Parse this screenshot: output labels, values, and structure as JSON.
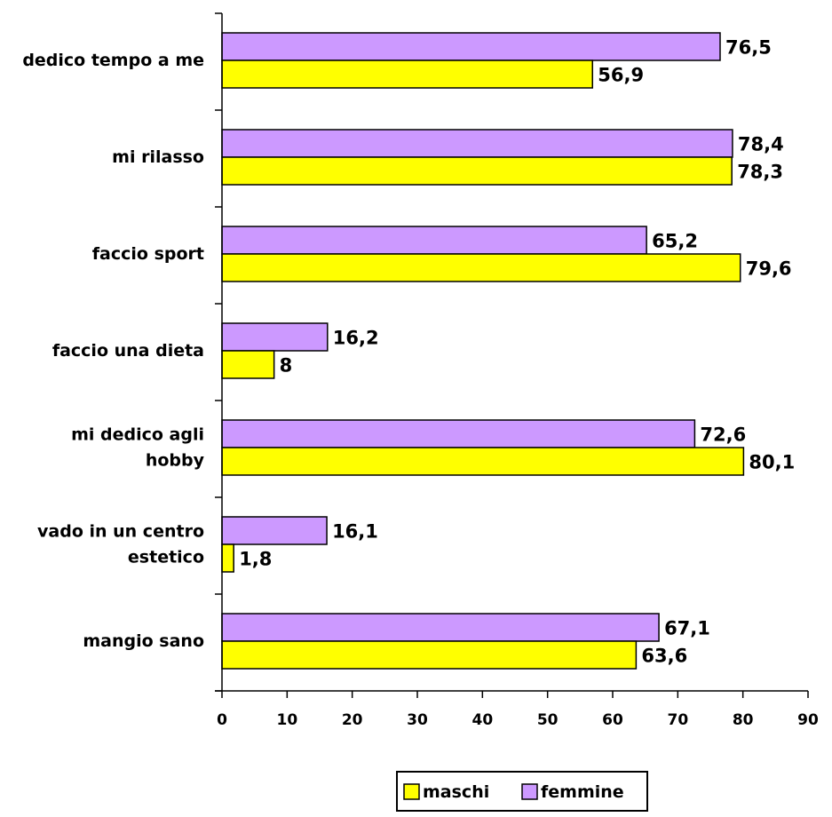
{
  "chart_data": {
    "type": "bar",
    "orientation": "horizontal",
    "categories": [
      [
        "dedico tempo a me"
      ],
      [
        "mi rilasso"
      ],
      [
        "faccio sport"
      ],
      [
        "faccio una dieta"
      ],
      [
        "mi dedico agli",
        "hobby"
      ],
      [
        "vado in un centro",
        "estetico"
      ],
      [
        "mangio sano"
      ]
    ],
    "series": [
      {
        "name": "femmine",
        "color": "#cc99ff",
        "values": [
          76.5,
          78.4,
          65.2,
          16.2,
          72.6,
          16.1,
          67.1
        ],
        "labels": [
          "76,5",
          "78,4",
          "65,2",
          "16,2",
          "72,6",
          "16,1",
          "67,1"
        ]
      },
      {
        "name": "maschi",
        "color": "#ffff00",
        "values": [
          56.9,
          78.3,
          79.6,
          8,
          80.1,
          1.8,
          63.6
        ],
        "labels": [
          "56,9",
          "78,3",
          "79,6",
          "8",
          "80,1",
          "1,8",
          "63,6"
        ]
      }
    ],
    "xlim": [
      0,
      90
    ],
    "xticks": [
      0,
      10,
      20,
      30,
      40,
      50,
      60,
      70,
      80,
      90
    ],
    "grid": false,
    "legend": {
      "position": "bottom",
      "entries": [
        {
          "name": "maschi",
          "color": "#ffff00"
        },
        {
          "name": "femmine",
          "color": "#cc99ff"
        }
      ]
    }
  }
}
